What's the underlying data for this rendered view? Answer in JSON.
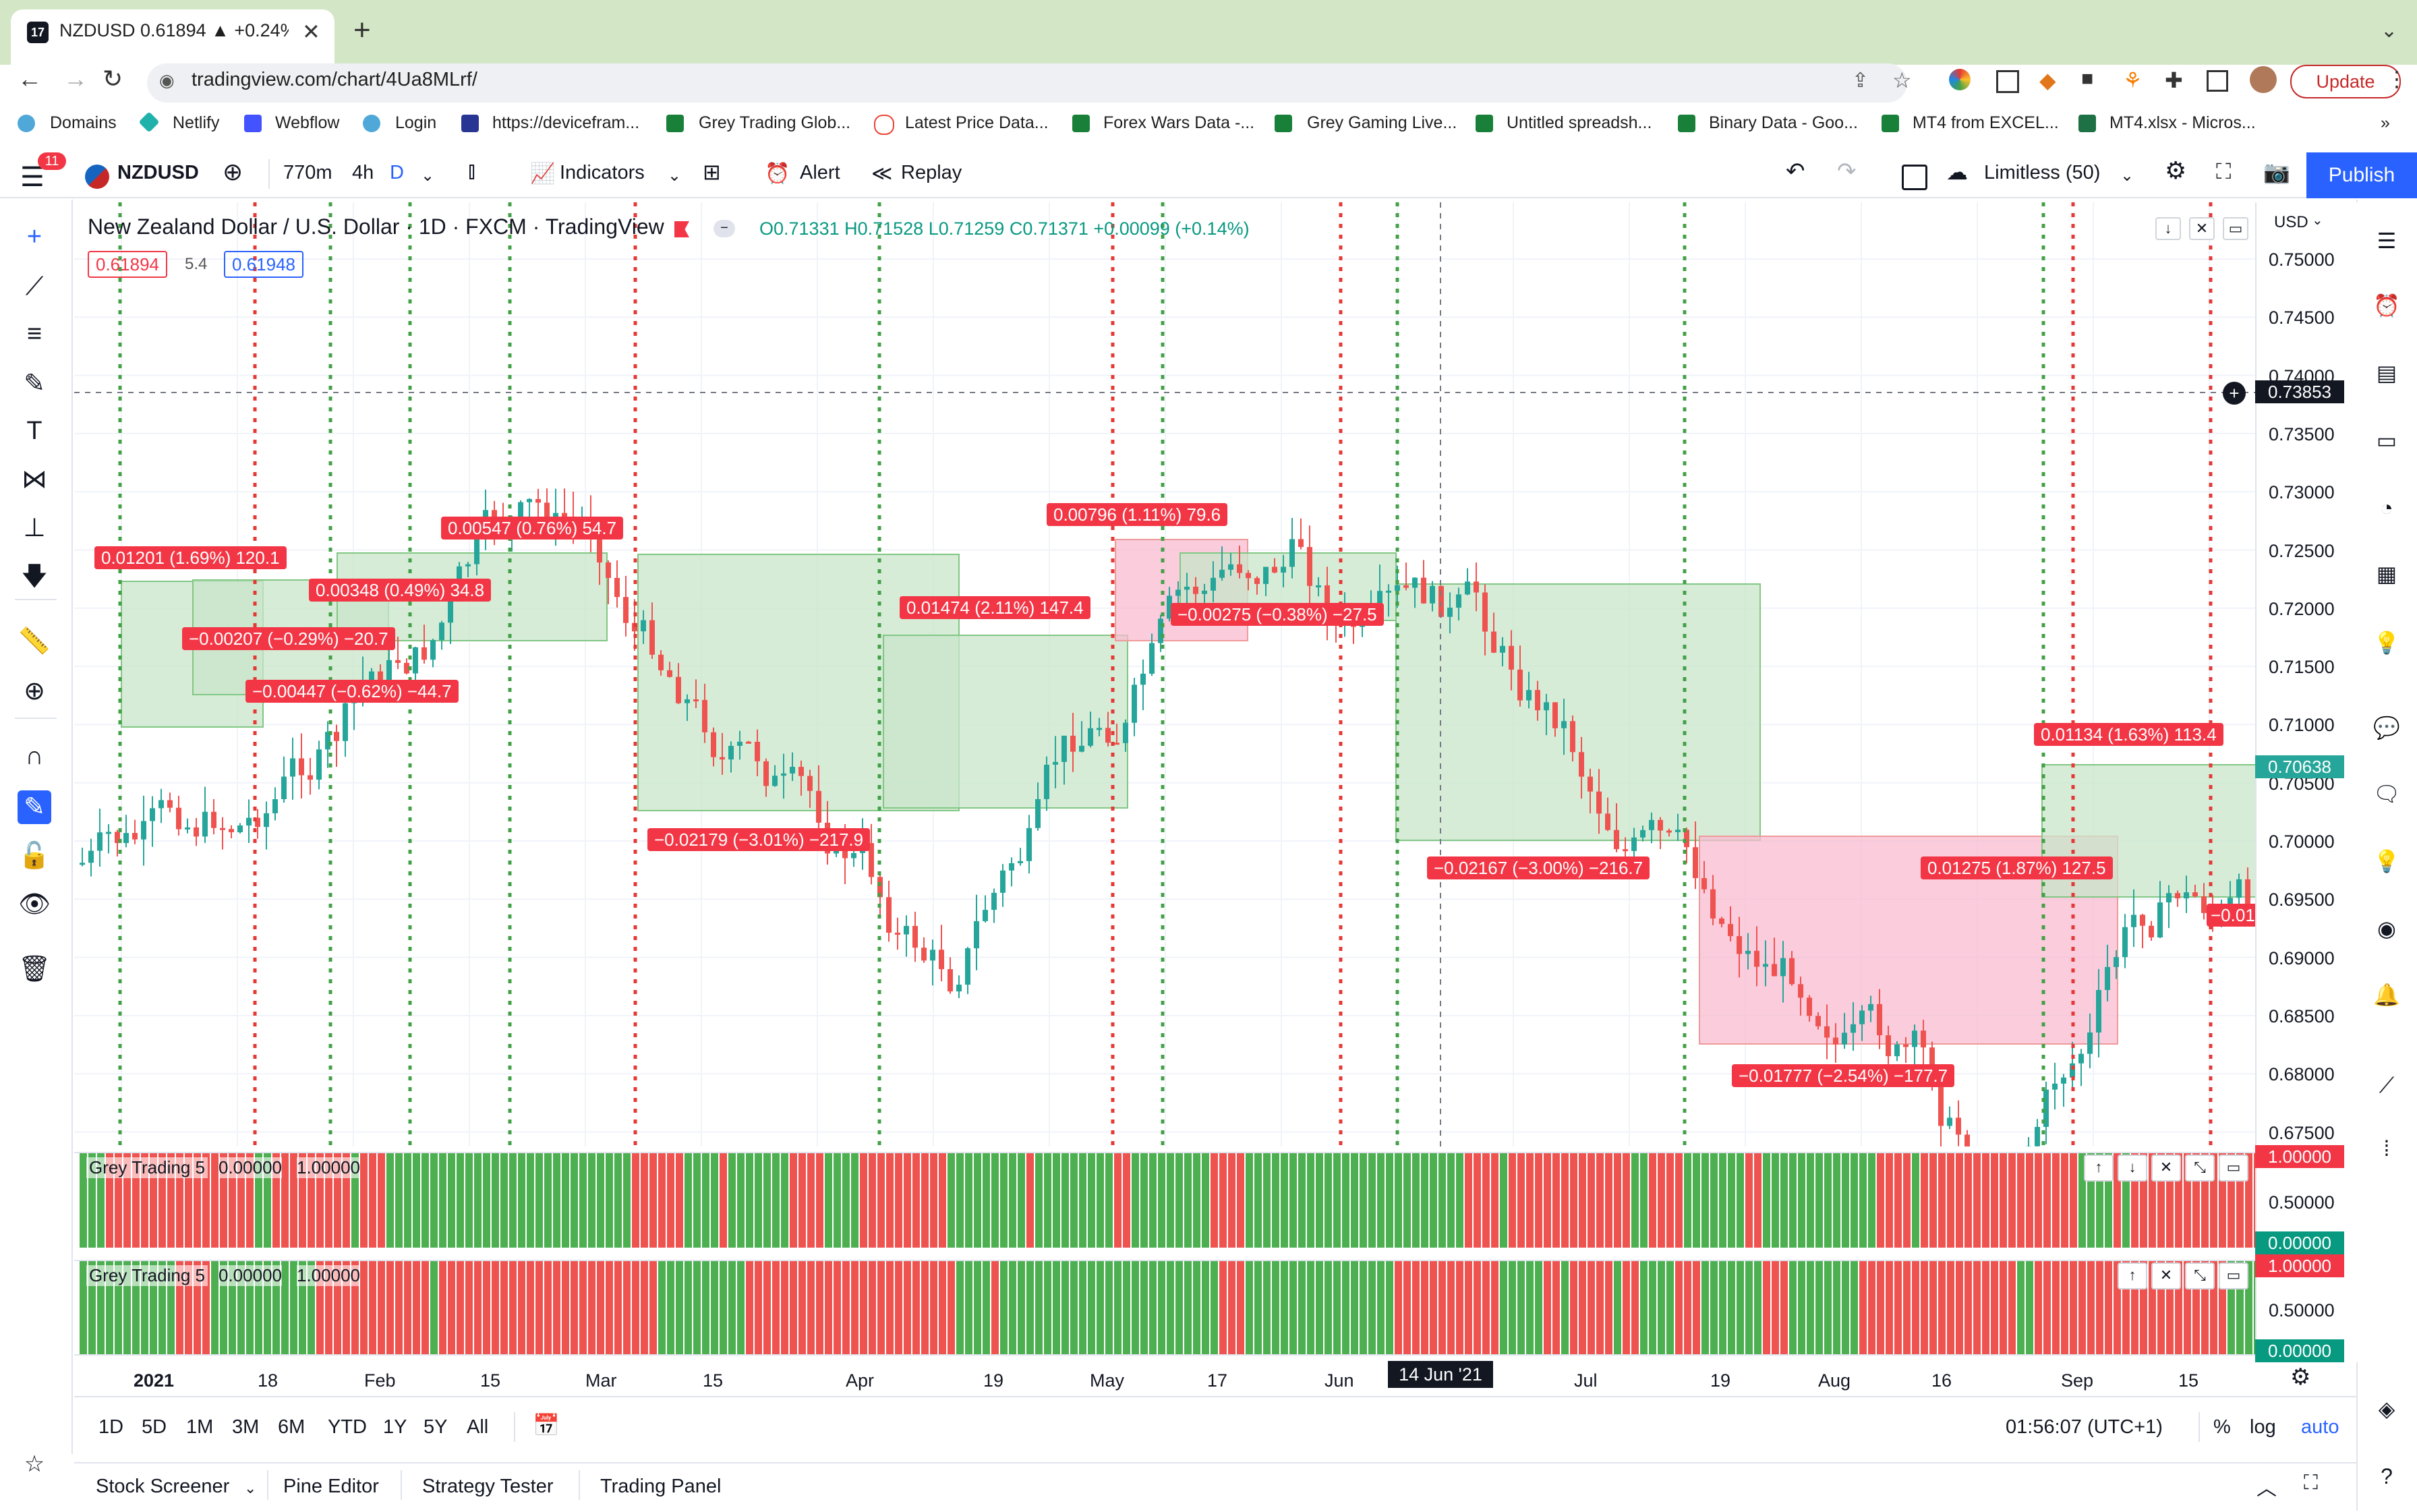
{
  "browser": {
    "tab_title": "NZDUSD 0.61894 ▲ +0.24% L...",
    "url": "tradingview.com/chart/4Ua8MLrf/",
    "update_label": "Update",
    "bookmarks": [
      "Domains",
      "Netlify",
      "Webflow",
      "Login",
      "https://devicefram...",
      "Grey Trading Glob...",
      "Latest Price Data...",
      "Forex Wars Data -...",
      "Grey Gaming Live...",
      "Untitled spreadsh...",
      "Binary Data - Goo...",
      "MT4 from EXCEL...",
      "MT4.xlsx - Micros..."
    ]
  },
  "toolbar": {
    "badge": "11",
    "symbol": "NZDUSD",
    "interval_1": "770m",
    "interval_2": "4h",
    "interval_3": "D",
    "indicators": "Indicators",
    "alert": "Alert",
    "replay": "Replay",
    "layout": "Limitless (50)",
    "publish": "Publish"
  },
  "legend": {
    "title": "New Zealand Dollar / U.S. Dollar · 1D · FXCM · TradingView",
    "ohlc": "O0.71331 H0.71528 L0.71259 C0.71371 +0.00099 (+0.14%)",
    "bid": "0.61894",
    "spread": "5.4",
    "ask": "0.61948"
  },
  "price_axis": {
    "currency": "USD",
    "labels": [
      "0.75000",
      "0.74500",
      "0.74000",
      "0.73500",
      "0.73000",
      "0.72500",
      "0.72000",
      "0.71500",
      "0.71000",
      "0.70500",
      "0.70000",
      "0.69500",
      "0.69000",
      "0.68500",
      "0.68000",
      "0.67500"
    ],
    "crosshair_price": "0.73853",
    "last_price": "0.70638"
  },
  "time_axis": {
    "labels": [
      "2021",
      "18",
      "Feb",
      "15",
      "Mar",
      "15",
      "Apr",
      "19",
      "May",
      "17",
      "Jun",
      "14 Jun '21",
      "Jul",
      "19",
      "Aug",
      "16",
      "Sep",
      "15"
    ]
  },
  "boxes": [
    {
      "text": "0.01201 (1.69%) 120.1",
      "color": "#f23645"
    },
    {
      "text": "0.00547 (0.76%) 54.7",
      "color": "#f23645"
    },
    {
      "text": "0.00348 (0.49%) 34.8",
      "color": "#f23645"
    },
    {
      "text": "−0.00207 (−0.29%) −20.7",
      "color": "#f23645"
    },
    {
      "text": "−0.00447 (−0.62%) −44.7",
      "color": "#f23645"
    },
    {
      "text": "0.00796 (1.11%) 79.6",
      "color": "#f23645"
    },
    {
      "text": "0.01474 (2.11%) 147.4",
      "color": "#f23645"
    },
    {
      "text": "−0.00275 (−0.38%) −27.5",
      "color": "#f23645"
    },
    {
      "text": "−0.02179 (−3.01%) −217.9",
      "color": "#f23645"
    },
    {
      "text": "−0.02167 (−3.00%) −216.7",
      "color": "#f23645"
    },
    {
      "text": "−0.01777 (−2.54%) −177.7",
      "color": "#f23645"
    },
    {
      "text": "0.01275 (1.87%) 127.5",
      "color": "#f23645"
    },
    {
      "text": "0.01134 (1.63%) 113.4",
      "color": "#f23645"
    },
    {
      "text": "−0.01",
      "color": "#f23645"
    }
  ],
  "panes": [
    {
      "label": "Grey Trading 5",
      "v1": "0.00000",
      "v2": "1.00000",
      "top": "1.00000",
      "mid": "0.50000",
      "bottom": "0.00000"
    },
    {
      "label": "Grey Trading 5",
      "v1": "0.00000",
      "v2": "1.00000",
      "top": "1.00000",
      "mid": "0.50000",
      "bottom": "0.00000"
    }
  ],
  "ranges": [
    "1D",
    "5D",
    "1M",
    "3M",
    "6M",
    "YTD",
    "1Y",
    "5Y",
    "All"
  ],
  "clock": "01:56:07 (UTC+1)",
  "scale_opts": [
    "%",
    "log",
    "auto"
  ],
  "panels": [
    "Stock Screener",
    "Pine Editor",
    "Strategy Tester",
    "Trading Panel"
  ],
  "colors": {
    "up": "#26a69a",
    "down": "#ef5350",
    "accent": "#2962ff",
    "green_line": "#43a047",
    "red_line": "#e53935"
  }
}
